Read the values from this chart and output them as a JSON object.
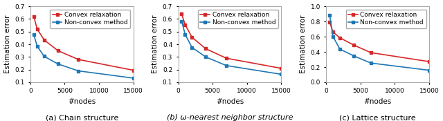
{
  "subplots": [
    {
      "title": "(a) Chain structure",
      "xlabel": "#nodes",
      "ylabel": "Estimation error",
      "ylim": [
        0.1,
        0.7
      ],
      "yticks": [
        0.1,
        0.2,
        0.3,
        0.4,
        0.5,
        0.6,
        0.7
      ],
      "xlim": [
        0,
        15000
      ],
      "xticks": [
        0,
        5000,
        10000,
        15000
      ],
      "xtick_labels": [
        "0",
        "5000",
        "10000",
        "15000"
      ],
      "convex_x": [
        500,
        1000,
        2000,
        4000,
        7000,
        15000
      ],
      "convex_y": [
        0.62,
        0.52,
        0.435,
        0.35,
        0.28,
        0.195
      ],
      "nonconvex_x": [
        500,
        1000,
        2000,
        4000,
        7000,
        15000
      ],
      "nonconvex_y": [
        0.475,
        0.385,
        0.305,
        0.245,
        0.19,
        0.133
      ]
    },
    {
      "title": "(b) ω-nearest neighbor structure",
      "xlabel": "#nodes",
      "ylabel": "Estimation error",
      "ylim": [
        0.1,
        0.7
      ],
      "yticks": [
        0.1,
        0.2,
        0.3,
        0.4,
        0.5,
        0.6,
        0.7
      ],
      "xlim": [
        0,
        15000
      ],
      "xticks": [
        0,
        5000,
        10000,
        15000
      ],
      "xtick_labels": [
        "0",
        "5000",
        "10000",
        "15000"
      ],
      "convex_x": [
        500,
        1000,
        2000,
        4000,
        7000,
        15000
      ],
      "convex_y": [
        0.638,
        0.555,
        0.455,
        0.365,
        0.29,
        0.21
      ],
      "nonconvex_x": [
        500,
        1000,
        2000,
        4000,
        7000,
        15000
      ],
      "nonconvex_y": [
        0.582,
        0.478,
        0.375,
        0.3,
        0.232,
        0.163
      ]
    },
    {
      "title": "(c) Lattice structure",
      "xlabel": "#nodes",
      "ylabel": "Estimation error",
      "ylim": [
        0,
        1.0
      ],
      "yticks": [
        0,
        0.2,
        0.4,
        0.6,
        0.8,
        1.0
      ],
      "xlim": [
        0,
        15000
      ],
      "xticks": [
        0,
        5000,
        10000,
        15000
      ],
      "xtick_labels": [
        "0",
        "5000",
        "10000",
        "15000"
      ],
      "convex_x": [
        500,
        1000,
        2000,
        4000,
        6500,
        15000
      ],
      "convex_y": [
        0.79,
        0.66,
        0.585,
        0.49,
        0.39,
        0.272
      ],
      "nonconvex_x": [
        500,
        1000,
        2000,
        4000,
        6500,
        15000
      ],
      "nonconvex_y": [
        0.885,
        0.6,
        0.435,
        0.348,
        0.253,
        0.158
      ]
    }
  ],
  "convex_color": "#d62728",
  "nonconvex_color": "#1f77b4",
  "legend_labels": [
    "Convex relaxation",
    "Non-convex method"
  ],
  "marker": "s",
  "markersize": 3.5,
  "linewidth": 1.2,
  "title_fontsize": 8,
  "label_fontsize": 7.5,
  "tick_fontsize": 6.5,
  "legend_fontsize": 6.5
}
